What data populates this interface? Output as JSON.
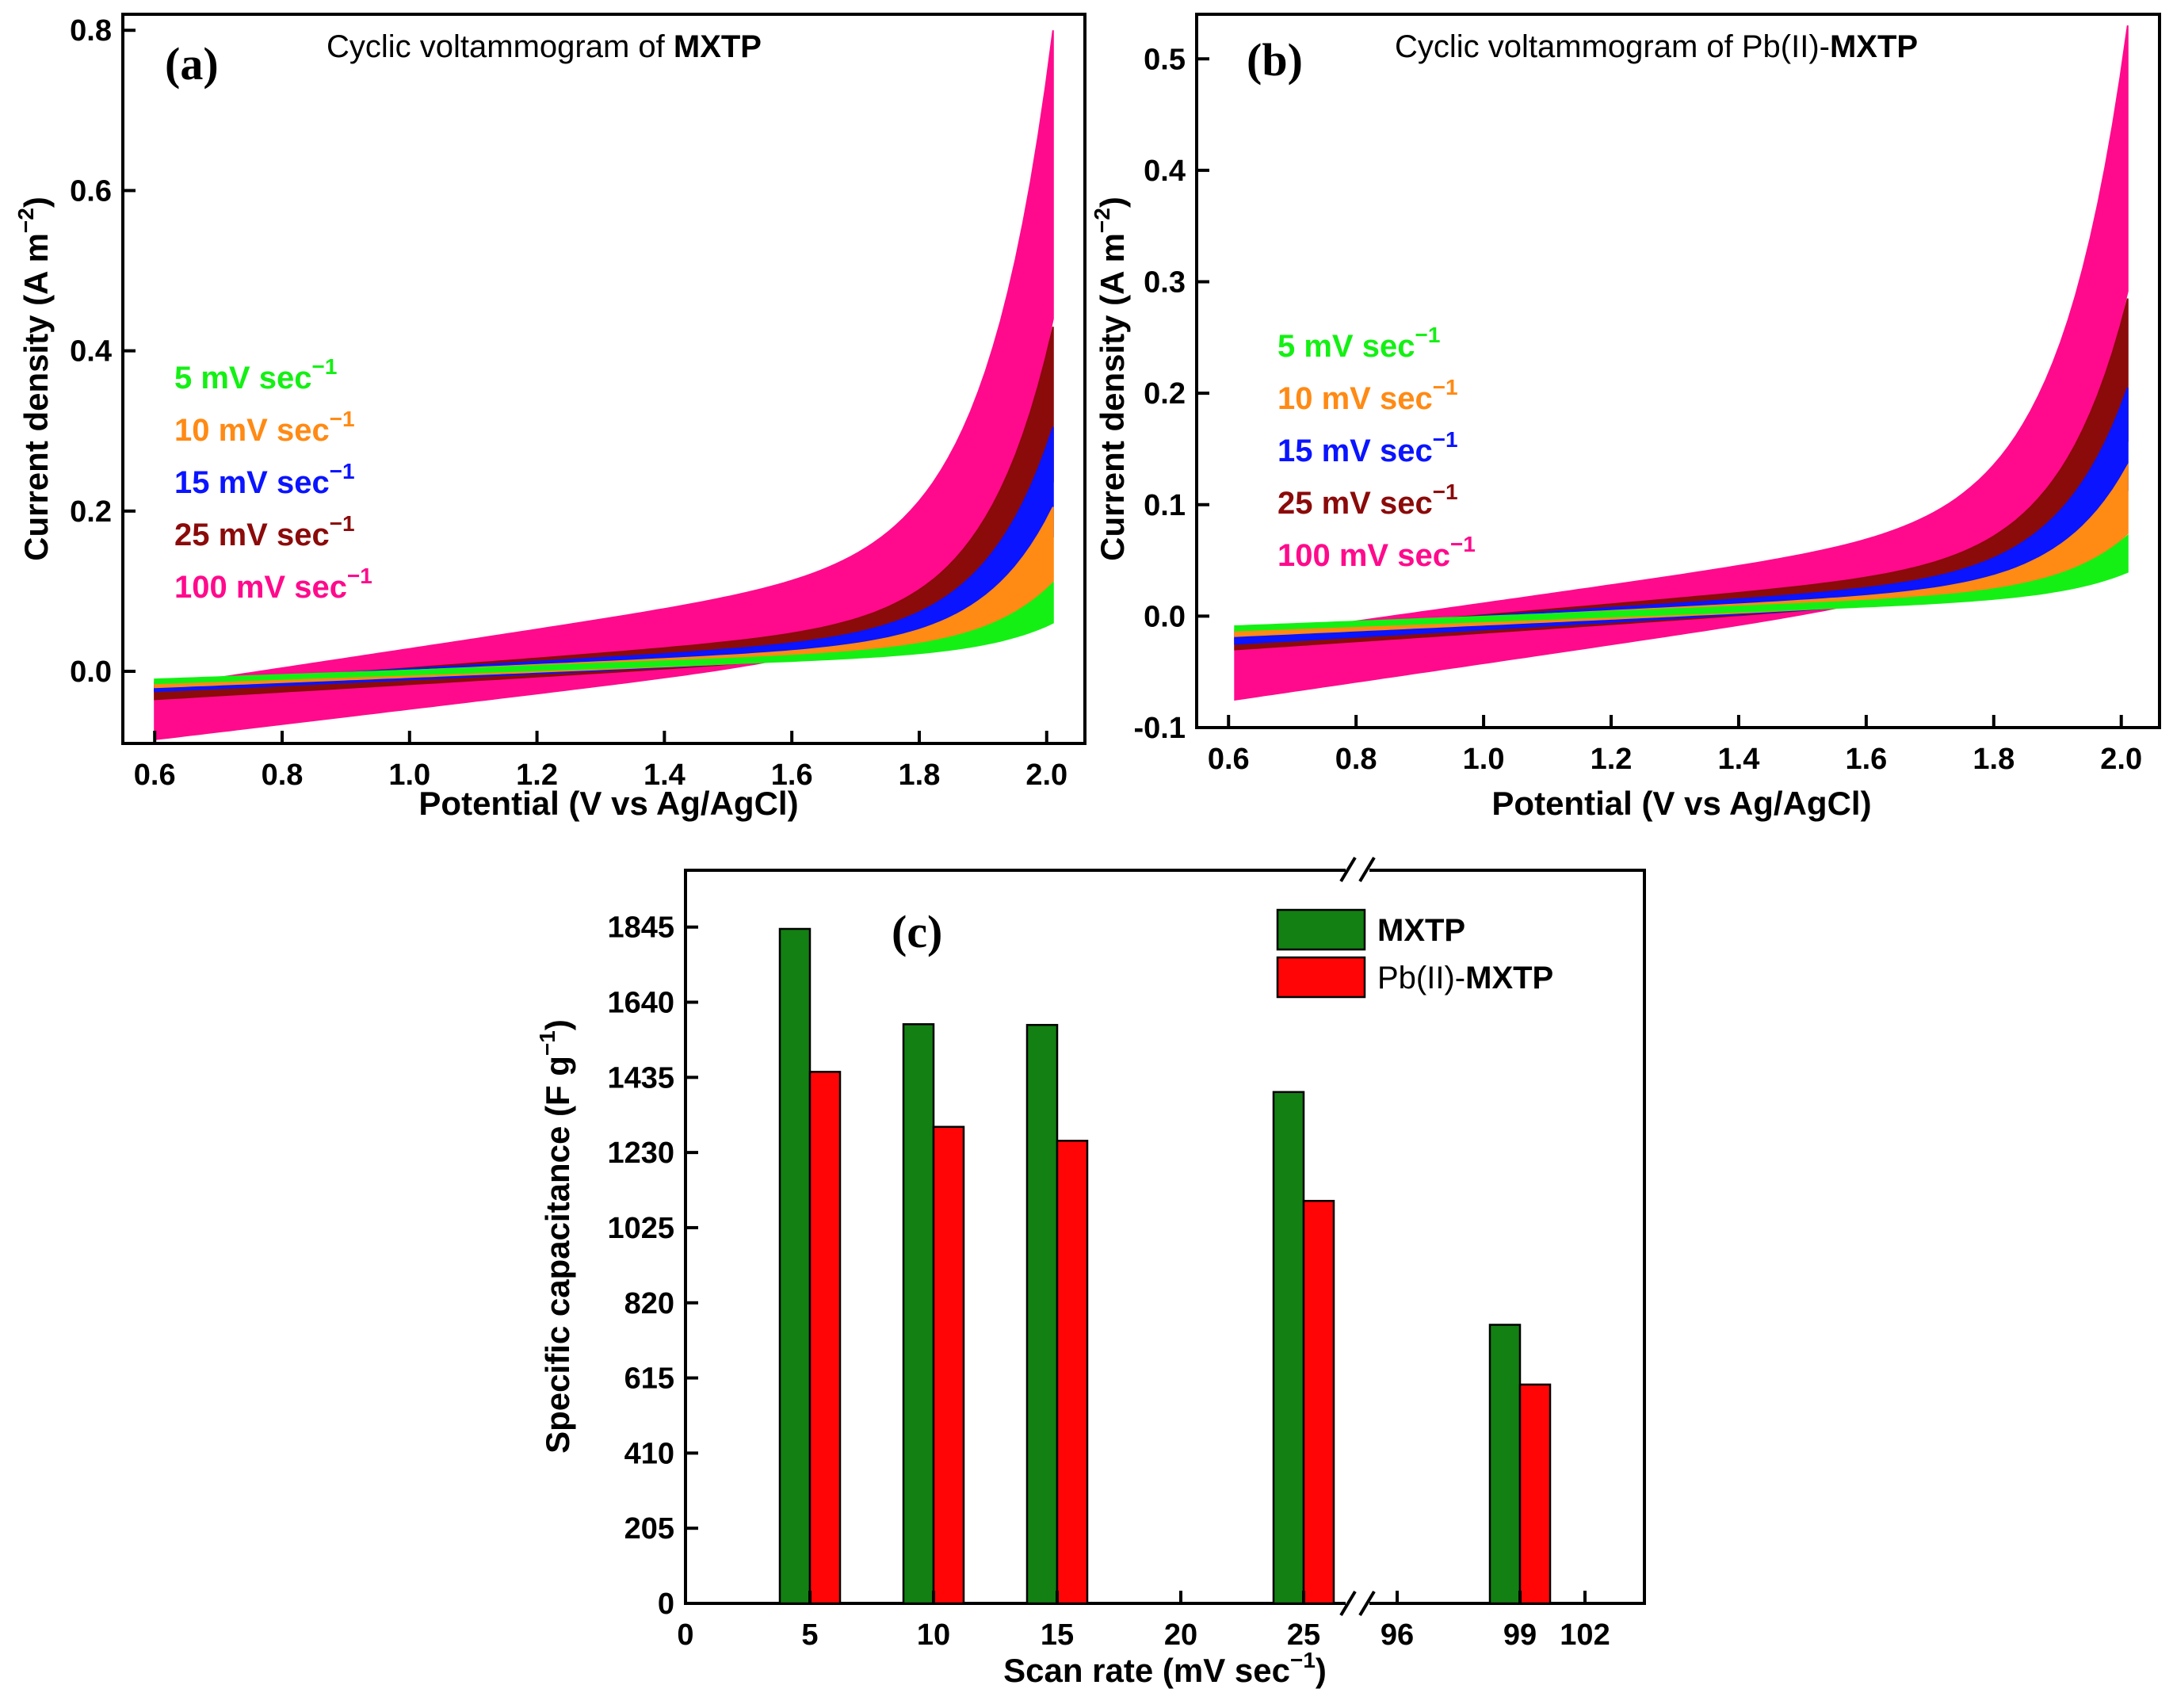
{
  "chart_data": [
    {
      "panel": "(a)",
      "type": "line",
      "title": "Cyclic voltammogram of ",
      "title_bold": "MXTP",
      "xlabel": "Potential (V vs Ag/AgCl)",
      "ylabel": "Current density (A m",
      "ylabel_sup": "−2",
      "ylabel_close": ")",
      "xlim": [
        0.55,
        2.06
      ],
      "ylim": [
        -0.09,
        0.82
      ],
      "xticks": [
        0.6,
        0.8,
        1.0,
        1.2,
        1.4,
        1.6,
        1.8,
        2.0
      ],
      "xtick_labels": [
        "0.6",
        "0.8",
        "1.0",
        "1.2",
        "1.4",
        "1.6",
        "1.8",
        "2.0"
      ],
      "yticks": [
        0.0,
        0.2,
        0.4,
        0.6,
        0.8
      ],
      "ytick_labels": [
        "0.0",
        "0.2",
        "0.4",
        "0.6",
        "0.8"
      ],
      "legend_position": "left-middle",
      "series": [
        {
          "name": "100 mV sec",
          "sup": "−1",
          "color": "#ff0a8c",
          "x_start": 0.6,
          "x_end": 2.01,
          "lower_start": -0.085,
          "upper_start": -0.02,
          "i_max": 0.8,
          "upper_at_1_6": 0.1,
          "lower_at_1_6": 0.01
        },
        {
          "name": "25 mV sec",
          "sup": "−1",
          "color": "#8b0a0a",
          "x_start": 0.6,
          "x_end": 2.01,
          "lower_start": -0.035,
          "upper_start": -0.02,
          "i_max": 0.43,
          "upper_at_1_6": 0.04,
          "lower_at_1_6": 0.012
        },
        {
          "name": "15 mV sec",
          "sup": "−1",
          "color": "#0a14ff",
          "x_start": 0.6,
          "x_end": 2.01,
          "lower_start": -0.025,
          "upper_start": -0.015,
          "i_max": 0.305,
          "upper_at_1_6": 0.03,
          "lower_at_1_6": 0.012
        },
        {
          "name": "10 mV sec",
          "sup": "−1",
          "color": "#ff8a14",
          "x_start": 0.6,
          "x_end": 2.01,
          "lower_start": -0.02,
          "upper_start": -0.013,
          "i_max": 0.205,
          "upper_at_1_6": 0.022,
          "lower_at_1_6": 0.012
        },
        {
          "name": "5 mV sec",
          "sup": "−1",
          "color": "#14f014",
          "x_start": 0.6,
          "x_end": 2.01,
          "lower_start": -0.015,
          "upper_start": -0.01,
          "i_max": 0.11,
          "upper_at_1_6": 0.018,
          "lower_at_1_6": 0.012
        }
      ]
    },
    {
      "panel": "(b)",
      "type": "line",
      "title": "Cyclic voltammogram of Pb(II)-",
      "title_bold": "MXTP",
      "xlabel": "Potential (V vs Ag/AgCl)",
      "ylabel": "Current density (A m",
      "ylabel_sup": "−2",
      "ylabel_close": ")",
      "xlim": [
        0.55,
        2.06
      ],
      "ylim": [
        -0.1,
        0.54
      ],
      "xticks": [
        0.6,
        0.8,
        1.0,
        1.2,
        1.4,
        1.6,
        1.8,
        2.0
      ],
      "xtick_labels": [
        "0.6",
        "0.8",
        "1.0",
        "1.2",
        "1.4",
        "1.6",
        "1.8",
        "2.0"
      ],
      "yticks": [
        -0.1,
        0.0,
        0.1,
        0.2,
        0.3,
        0.4,
        0.5
      ],
      "ytick_labels": [
        "-0.1",
        "0.0",
        "0.1",
        "0.2",
        "0.3",
        "0.4",
        "0.5"
      ],
      "legend_position": "left-middle",
      "series": [
        {
          "name": "100 mV sec",
          "sup": "−1",
          "color": "#ff0a8c",
          "x_start": 0.61,
          "x_end": 2.01,
          "lower_start": -0.075,
          "upper_start": -0.02,
          "i_max": 0.53,
          "upper_at_1_6": 0.06,
          "lower_at_1_6": 0.008
        },
        {
          "name": "25 mV sec",
          "sup": "−1",
          "color": "#8b0a0a",
          "x_start": 0.61,
          "x_end": 2.01,
          "lower_start": -0.03,
          "upper_start": -0.018,
          "i_max": 0.285,
          "upper_at_1_6": 0.03,
          "lower_at_1_6": 0.008
        },
        {
          "name": "15 mV sec",
          "sup": "−1",
          "color": "#0a14ff",
          "x_start": 0.61,
          "x_end": 2.01,
          "lower_start": -0.025,
          "upper_start": -0.014,
          "i_max": 0.205,
          "upper_at_1_6": 0.022,
          "lower_at_1_6": 0.008
        },
        {
          "name": "10 mV sec",
          "sup": "−1",
          "color": "#ff8a14",
          "x_start": 0.61,
          "x_end": 2.01,
          "lower_start": -0.018,
          "upper_start": -0.012,
          "i_max": 0.135,
          "upper_at_1_6": 0.016,
          "lower_at_1_6": 0.008
        },
        {
          "name": "5 mV sec",
          "sup": "−1",
          "color": "#14f014",
          "x_start": 0.61,
          "x_end": 2.01,
          "lower_start": -0.013,
          "upper_start": -0.009,
          "i_max": 0.072,
          "upper_at_1_6": 0.013,
          "lower_at_1_6": 0.008
        }
      ]
    },
    {
      "panel": "(c)",
      "type": "bar",
      "xlabel": "Scan rate (mV sec",
      "xlabel_sup": "−1",
      "xlabel_close": ")",
      "ylabel": "Specific capacitance (F g",
      "ylabel_sup": "−1",
      "ylabel_close": ")",
      "ylim": [
        0,
        2000
      ],
      "yticks": [
        0,
        205,
        410,
        615,
        820,
        1025,
        1230,
        1435,
        1640,
        1845
      ],
      "ytick_labels": [
        "0",
        "205",
        "410",
        "615",
        "820",
        "1025",
        "1230",
        "1435",
        "1640",
        "1845"
      ],
      "xtick_labels": [
        "0",
        "5",
        "10",
        "15",
        "20",
        "25",
        "96",
        "99",
        "102"
      ],
      "axis_break": true,
      "categories": [
        "5",
        "10",
        "15",
        "25",
        "99"
      ],
      "series": [
        {
          "name": "MXTP",
          "name_bold": true,
          "color": "#138013",
          "values": [
            1840,
            1580,
            1578,
            1395,
            760
          ]
        },
        {
          "name_prefix": "Pb(II)-",
          "name": "MXTP",
          "color": "#ff0505",
          "values": [
            1450,
            1300,
            1262,
            1098,
            597
          ]
        }
      ],
      "legend_position": "top-right"
    }
  ]
}
